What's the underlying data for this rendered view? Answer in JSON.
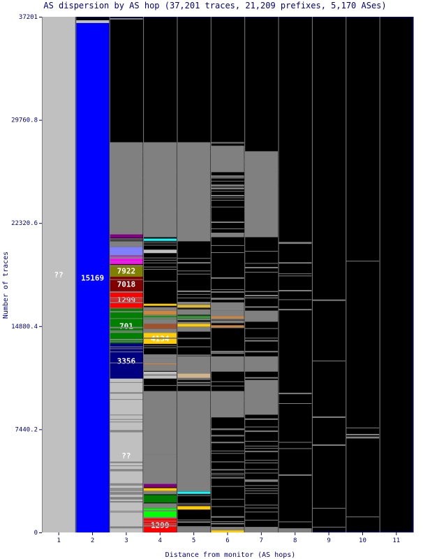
{
  "chart_data": {
    "type": "bar",
    "title": "AS dispersion by AS hop (37,201 traces, 21,209 prefixes, 5,170 ASes)",
    "xlabel": "Distance from monitor (AS hops)",
    "ylabel": "Number of traces",
    "ylim": [
      0,
      37201
    ],
    "yticks": [
      "0",
      "7440.2",
      "14880.4",
      "22320.6",
      "29760.8",
      "37201"
    ],
    "categories": [
      "1",
      "2",
      "3",
      "4",
      "5",
      "6",
      "7",
      "8",
      "9",
      "10",
      "11"
    ],
    "grid": false,
    "background_color": "#000000",
    "segments": [
      {
        "hop": 1,
        "from": 0,
        "to": 37201,
        "color": "#c0c0c0",
        "label": "??"
      },
      {
        "hop": 2,
        "from": 0,
        "to": 36750,
        "color": "#0000ff",
        "label": "15169"
      },
      {
        "hop": 2,
        "from": 36750,
        "to": 36950,
        "color": "#c0c0c0",
        "label": ""
      },
      {
        "hop": 3,
        "from": 11100,
        "to": 13650,
        "color": "#000080",
        "label": "3356"
      },
      {
        "hop": 3,
        "from": 13650,
        "to": 16150,
        "color": "#008000",
        "label": "701"
      },
      {
        "hop": 3,
        "from": 16150,
        "to": 17400,
        "color": "#ff0000",
        "label": "1299"
      },
      {
        "hop": 3,
        "from": 17400,
        "to": 18450,
        "color": "#800000",
        "label": "7018"
      },
      {
        "hop": 3,
        "from": 18450,
        "to": 19300,
        "color": "#808000",
        "label": "7922"
      },
      {
        "hop": 3,
        "from": 0,
        "to": 11100,
        "color": "#c0c0c0",
        "label": "??"
      },
      {
        "hop": 3,
        "from": 19350,
        "to": 19950,
        "color": "#ff00ff",
        "label": ""
      },
      {
        "hop": 3,
        "from": 20000,
        "to": 20600,
        "color": "#8080ff",
        "label": ""
      },
      {
        "hop": 3,
        "from": 20600,
        "to": 21000,
        "color": "#808080",
        "label": ""
      },
      {
        "hop": 3,
        "from": 21000,
        "to": 21200,
        "color": "#404040",
        "label": ""
      },
      {
        "hop": 3,
        "from": 21250,
        "to": 21500,
        "color": "#800080",
        "label": ""
      },
      {
        "hop": 3,
        "from": 21500,
        "to": 28150,
        "color": "#808080",
        "label": ""
      },
      {
        "hop": 3,
        "from": 37000,
        "to": 37100,
        "color": "#808080",
        "label": ""
      },
      {
        "hop": 4,
        "from": 0,
        "to": 1050,
        "color": "#ff0000",
        "label": "1299"
      },
      {
        "hop": 4,
        "from": 1050,
        "to": 1750,
        "color": "#00ff00",
        "label": ""
      },
      {
        "hop": 4,
        "from": 1750,
        "to": 2100,
        "color": "#808080",
        "label": ""
      },
      {
        "hop": 4,
        "from": 2150,
        "to": 2700,
        "color": "#008000",
        "label": ""
      },
      {
        "hop": 4,
        "from": 2750,
        "to": 2950,
        "color": "#808080",
        "label": ""
      },
      {
        "hop": 4,
        "from": 3000,
        "to": 3200,
        "color": "#ffcc00",
        "label": ""
      },
      {
        "hop": 4,
        "from": 3250,
        "to": 3500,
        "color": "#800080",
        "label": ""
      },
      {
        "hop": 4,
        "from": 3500,
        "to": 5600,
        "color": "#808080",
        "label": ""
      },
      {
        "hop": 4,
        "from": 5600,
        "to": 10200,
        "color": "#808080",
        "label": ""
      },
      {
        "hop": 4,
        "from": 11100,
        "to": 11600,
        "color": "#c0c0c0",
        "label": ""
      },
      {
        "hop": 4,
        "from": 11650,
        "to": 12000,
        "color": "#808080",
        "label": ""
      },
      {
        "hop": 4,
        "from": 12050,
        "to": 12200,
        "color": "#cd853f",
        "label": ""
      },
      {
        "hop": 4,
        "from": 12200,
        "to": 12600,
        "color": "#808080",
        "label": ""
      },
      {
        "hop": 4,
        "from": 12600,
        "to": 12800,
        "color": "#808080",
        "label": ""
      },
      {
        "hop": 4,
        "from": 13600,
        "to": 14400,
        "color": "#ffcc00",
        "label": "4134"
      },
      {
        "hop": 4,
        "from": 14400,
        "to": 14700,
        "color": "#808080",
        "label": ""
      },
      {
        "hop": 4,
        "from": 14700,
        "to": 15050,
        "color": "#a0522d",
        "label": ""
      },
      {
        "hop": 4,
        "from": 15050,
        "to": 15350,
        "color": "#808080",
        "label": ""
      },
      {
        "hop": 4,
        "from": 15350,
        "to": 15700,
        "color": "#228b22",
        "label": ""
      },
      {
        "hop": 4,
        "from": 15700,
        "to": 16000,
        "color": "#cd853f",
        "label": ""
      },
      {
        "hop": 4,
        "from": 16000,
        "to": 16250,
        "color": "#808080",
        "label": ""
      },
      {
        "hop": 4,
        "from": 16350,
        "to": 16500,
        "color": "#ffcc00",
        "label": ""
      },
      {
        "hop": 4,
        "from": 20150,
        "to": 20400,
        "color": "#c0c0c0",
        "label": ""
      },
      {
        "hop": 4,
        "from": 21000,
        "to": 21200,
        "color": "#00ffff",
        "label": ""
      },
      {
        "hop": 4,
        "from": 21300,
        "to": 28150,
        "color": "#808080",
        "label": ""
      },
      {
        "hop": 5,
        "from": 0,
        "to": 400,
        "color": "#808080",
        "label": ""
      },
      {
        "hop": 5,
        "from": 1650,
        "to": 1900,
        "color": "#ffcc00",
        "label": ""
      },
      {
        "hop": 5,
        "from": 2800,
        "to": 2950,
        "color": "#00ffff",
        "label": ""
      },
      {
        "hop": 5,
        "from": 3000,
        "to": 10200,
        "color": "#808080",
        "label": ""
      },
      {
        "hop": 5,
        "from": 11100,
        "to": 11500,
        "color": "#d2b48c",
        "label": ""
      },
      {
        "hop": 5,
        "from": 11500,
        "to": 12700,
        "color": "#808080",
        "label": ""
      },
      {
        "hop": 5,
        "from": 14500,
        "to": 14850,
        "color": "#808080",
        "label": ""
      },
      {
        "hop": 5,
        "from": 14850,
        "to": 15050,
        "color": "#ffcc00",
        "label": ""
      },
      {
        "hop": 5,
        "from": 15050,
        "to": 15200,
        "color": "#808080",
        "label": ""
      },
      {
        "hop": 5,
        "from": 15400,
        "to": 15650,
        "color": "#228b22",
        "label": ""
      },
      {
        "hop": 5,
        "from": 15700,
        "to": 16100,
        "color": "#808080",
        "label": ""
      },
      {
        "hop": 5,
        "from": 16200,
        "to": 16400,
        "color": "#ffcc00",
        "label": ""
      },
      {
        "hop": 5,
        "from": 16400,
        "to": 16600,
        "color": "#808080",
        "label": ""
      },
      {
        "hop": 5,
        "from": 21000,
        "to": 28150,
        "color": "#808080",
        "label": ""
      },
      {
        "hop": 6,
        "from": 0,
        "to": 150,
        "color": "#ffcc00",
        "label": ""
      },
      {
        "hop": 6,
        "from": 150,
        "to": 400,
        "color": "#808080",
        "label": ""
      },
      {
        "hop": 6,
        "from": 8300,
        "to": 10200,
        "color": "#808080",
        "label": ""
      },
      {
        "hop": 6,
        "from": 11600,
        "to": 12700,
        "color": "#808080",
        "label": ""
      },
      {
        "hop": 6,
        "from": 14750,
        "to": 14950,
        "color": "#cd853f",
        "label": ""
      },
      {
        "hop": 6,
        "from": 15100,
        "to": 15300,
        "color": "#808080",
        "label": ""
      },
      {
        "hop": 6,
        "from": 15350,
        "to": 15600,
        "color": "#cd853f",
        "label": ""
      },
      {
        "hop": 6,
        "from": 15600,
        "to": 16000,
        "color": "#808080",
        "label": ""
      },
      {
        "hop": 6,
        "from": 16000,
        "to": 16600,
        "color": "#808080",
        "label": ""
      },
      {
        "hop": 6,
        "from": 21300,
        "to": 21600,
        "color": "#808080",
        "label": ""
      },
      {
        "hop": 6,
        "from": 26000,
        "to": 27900,
        "color": "#808080",
        "label": ""
      },
      {
        "hop": 7,
        "from": 0,
        "to": 400,
        "color": "#808080",
        "label": ""
      },
      {
        "hop": 7,
        "from": 8500,
        "to": 11000,
        "color": "#808080",
        "label": ""
      },
      {
        "hop": 7,
        "from": 11600,
        "to": 12700,
        "color": "#808080",
        "label": ""
      },
      {
        "hop": 7,
        "from": 15200,
        "to": 16000,
        "color": "#808080",
        "label": ""
      },
      {
        "hop": 7,
        "from": 21300,
        "to": 27500,
        "color": "#808080",
        "label": ""
      },
      {
        "hop": 8,
        "from": 0,
        "to": 300,
        "color": "#808080",
        "label": ""
      }
    ],
    "thin_lines_hops": [
      3,
      4,
      5,
      6,
      7,
      8,
      9,
      10
    ]
  }
}
